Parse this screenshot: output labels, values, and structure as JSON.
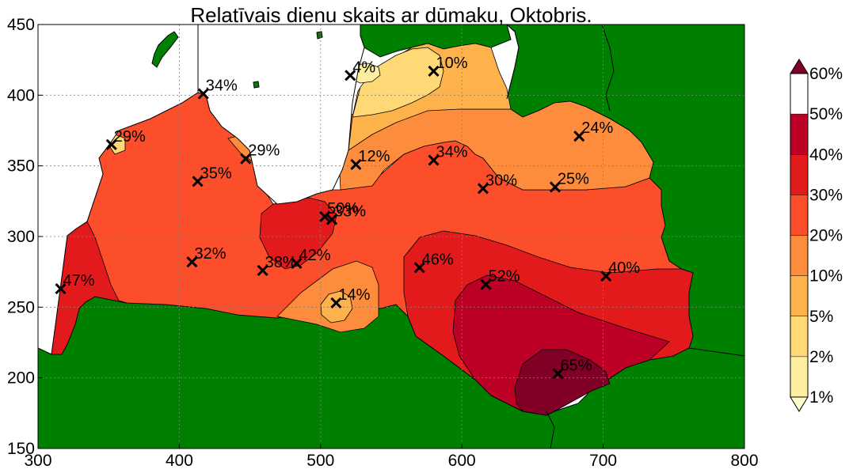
{
  "chart_data": {
    "type": "heatmap",
    "title": "Relatīvais dienu skaits ar dūmaku, Oktobris.",
    "xlim": [
      300,
      800
    ],
    "ylim": [
      150,
      450
    ],
    "xticks": [
      300,
      400,
      500,
      600,
      700,
      800
    ],
    "yticks": [
      150,
      200,
      250,
      300,
      350,
      400,
      450
    ],
    "grid": true,
    "colorbar": {
      "placement": "right",
      "levels": [
        "1%",
        "2%",
        "5%",
        "10%",
        "20%",
        "30%",
        "40%",
        "50%",
        "60%"
      ],
      "colors": [
        "#ffffcc",
        "#ffeda0",
        "#fed976",
        "#feb24c",
        "#fd8d3c",
        "#fc4e2a",
        "#e31a1c",
        "#bd0026",
        "#800026"
      ]
    },
    "colors": {
      "land": "#008000",
      "sea": "#ffffff"
    },
    "stations": [
      {
        "x": 521,
        "y": 414,
        "label": "4%"
      },
      {
        "x": 580,
        "y": 417,
        "label": "10%"
      },
      {
        "x": 417,
        "y": 401,
        "label": "34%"
      },
      {
        "x": 352,
        "y": 365,
        "label": "29%"
      },
      {
        "x": 447,
        "y": 355,
        "label": "29%"
      },
      {
        "x": 525,
        "y": 351,
        "label": "12%"
      },
      {
        "x": 580,
        "y": 354,
        "label": "34%"
      },
      {
        "x": 683,
        "y": 371,
        "label": "24%"
      },
      {
        "x": 413,
        "y": 339,
        "label": "35%"
      },
      {
        "x": 615,
        "y": 334,
        "label": "30%"
      },
      {
        "x": 666,
        "y": 335,
        "label": "25%"
      },
      {
        "x": 503,
        "y": 314,
        "label": "50%"
      },
      {
        "x": 508,
        "y": 312,
        "label": "33%"
      },
      {
        "x": 409,
        "y": 282,
        "label": "32%"
      },
      {
        "x": 459,
        "y": 276,
        "label": "38%"
      },
      {
        "x": 483,
        "y": 281,
        "label": "42%"
      },
      {
        "x": 570,
        "y": 278,
        "label": "46%"
      },
      {
        "x": 316,
        "y": 263,
        "label": "47%"
      },
      {
        "x": 617,
        "y": 266,
        "label": "52%"
      },
      {
        "x": 702,
        "y": 272,
        "label": "40%"
      },
      {
        "x": 511,
        "y": 253,
        "label": "14%"
      },
      {
        "x": 668,
        "y": 203,
        "label": "65%"
      }
    ]
  }
}
